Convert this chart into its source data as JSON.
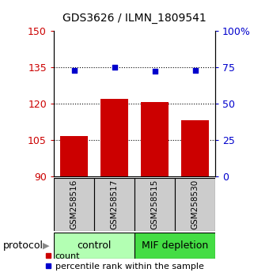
{
  "title": "GDS3626 / ILMN_1809541",
  "samples": [
    "GSM258516",
    "GSM258517",
    "GSM258515",
    "GSM258530"
  ],
  "bar_values": [
    106.5,
    122.0,
    120.5,
    113.0
  ],
  "bar_base": 90,
  "percentile_values": [
    73,
    75,
    72.5,
    73
  ],
  "bar_color": "#cc0000",
  "percentile_color": "#0000cc",
  "ylim_left": [
    90,
    150
  ],
  "ylim_right": [
    0,
    100
  ],
  "yticks_left": [
    90,
    105,
    120,
    135,
    150
  ],
  "yticks_right": [
    0,
    25,
    50,
    75,
    100
  ],
  "ytick_labels_right": [
    "0",
    "25",
    "50",
    "75",
    "100%"
  ],
  "groups": [
    {
      "label": "control",
      "samples": [
        0,
        1
      ],
      "color": "#b3ffb3"
    },
    {
      "label": "MIF depletion",
      "samples": [
        2,
        3
      ],
      "color": "#44dd44"
    }
  ],
  "sample_box_color": "#cccccc",
  "dotted_line_values": [
    105,
    120,
    135
  ],
  "bar_width": 0.7,
  "legend_count_label": "count",
  "legend_percentile_label": "percentile rank within the sample",
  "protocol_label": "protocol"
}
